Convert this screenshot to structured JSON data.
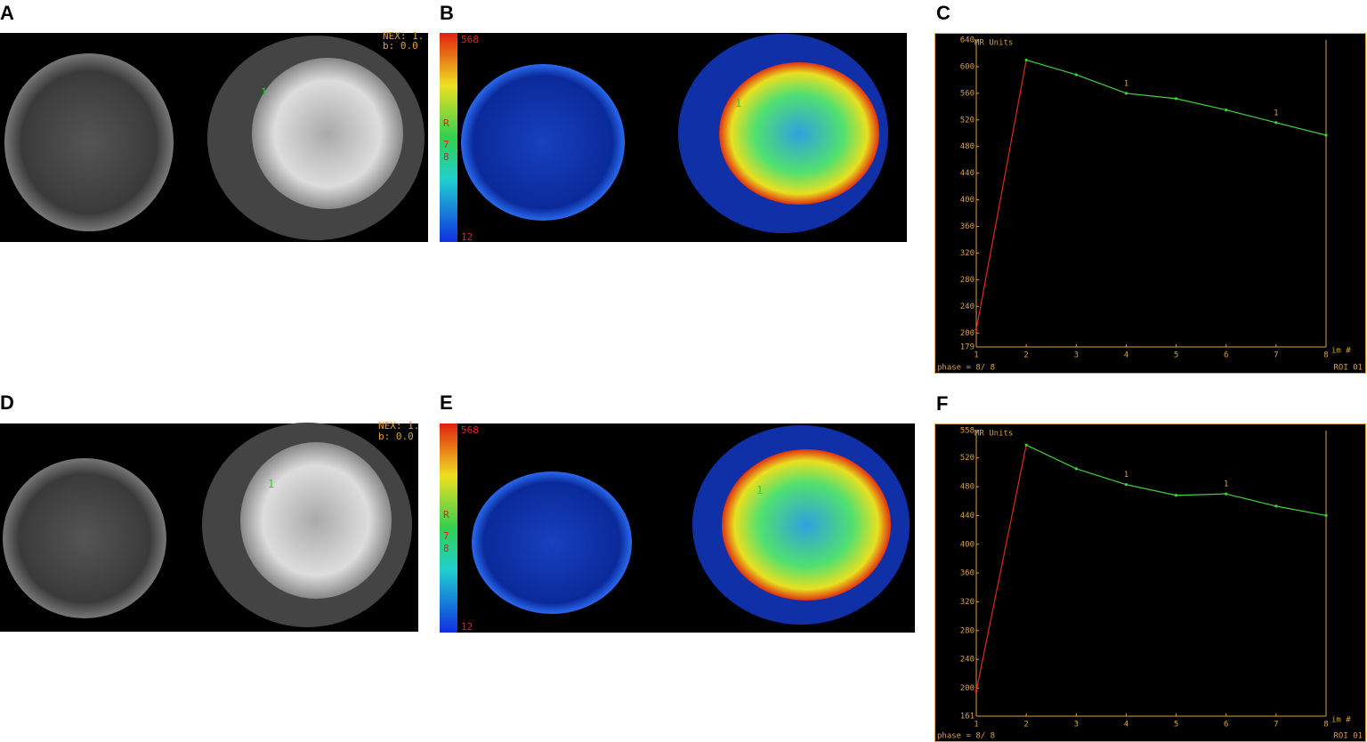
{
  "panels": [
    {
      "label": "A",
      "overlay": [
        "NEX: 1.",
        "b: 0.0"
      ],
      "roi": "1"
    },
    {
      "label": "B",
      "colorbar": [
        "568",
        "R",
        "7",
        "8",
        "12"
      ],
      "roi": "1"
    },
    {
      "label": "D",
      "overlay": [
        "NEX: 1.",
        "b: 0.0"
      ],
      "roi": "1"
    },
    {
      "label": "E",
      "colorbar": [
        "568",
        "R",
        "7",
        "8",
        "12"
      ],
      "roi": "1"
    }
  ],
  "chart_data": [
    {
      "type": "line",
      "panel_label": "C",
      "title": "MR Units",
      "x_label": "im #",
      "footer_left": "phase =  8/ 8",
      "footer_right": "ROI 01",
      "x": [
        1,
        2,
        3,
        4,
        5,
        6,
        7,
        8
      ],
      "xlim": [
        1,
        8
      ],
      "xticks": [
        1,
        2,
        3,
        4,
        5,
        6,
        7,
        8
      ],
      "ylim": [
        179,
        640
      ],
      "yticks": [
        179,
        200,
        240,
        280,
        320,
        360,
        400,
        440,
        480,
        520,
        560,
        600,
        640
      ],
      "upslope_color": "#e02a1a",
      "name_at_x": [
        4,
        7
      ],
      "series": [
        {
          "name": "1",
          "color": "#3fd23a",
          "values": [
            205,
            610,
            588,
            560,
            552,
            535,
            516,
            497
          ]
        }
      ]
    },
    {
      "type": "line",
      "panel_label": "F",
      "title": "MR Units",
      "x_label": "im #",
      "footer_left": "phase =  8/ 8",
      "footer_right": "ROI 01",
      "x": [
        1,
        2,
        3,
        4,
        5,
        6,
        7,
        8
      ],
      "xlim": [
        1,
        8
      ],
      "xticks": [
        1,
        2,
        3,
        4,
        5,
        6,
        7,
        8
      ],
      "ylim": [
        161,
        558
      ],
      "yticks": [
        161,
        200,
        240,
        280,
        320,
        360,
        400,
        440,
        480,
        520,
        558
      ],
      "upslope_color": "#e02a1a",
      "name_at_x": [
        4,
        6
      ],
      "series": [
        {
          "name": "1",
          "color": "#3fd23a",
          "values": [
            196,
            538,
            505,
            483,
            468,
            470,
            453,
            440
          ]
        }
      ]
    }
  ]
}
